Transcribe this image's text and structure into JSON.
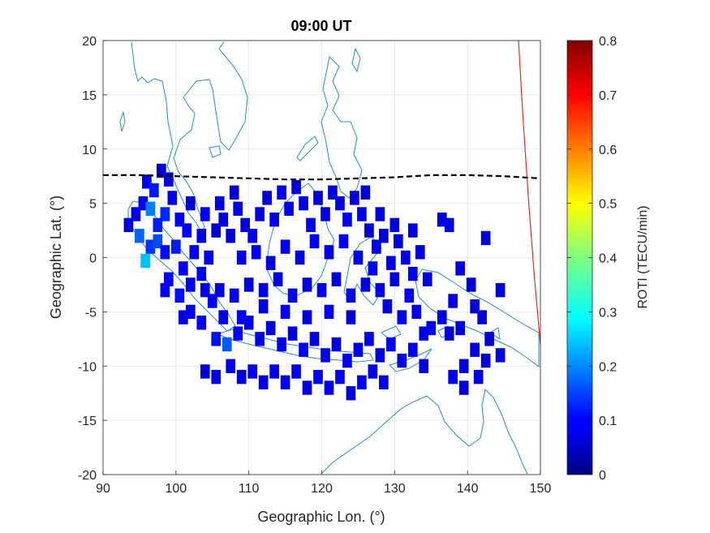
{
  "chart_data": {
    "type": "heatmap",
    "title": "09:00 UT",
    "xlabel": "Geographic Lon. (°)",
    "ylabel": "Geographic Lat. (°)",
    "xlim": [
      90,
      150
    ],
    "ylim": [
      -20,
      20
    ],
    "xticks": [
      "90",
      "100",
      "110",
      "120",
      "130",
      "140",
      "150"
    ],
    "yticks": [
      "20",
      "15",
      "10",
      "5",
      "0",
      "-5",
      "-10",
      "-15",
      "-20"
    ],
    "grid": true,
    "colorbar": {
      "label": "ROTI (TECU/min)",
      "range": [
        0,
        0.8
      ],
      "ticks": [
        "0.8",
        "0.7",
        "0.6",
        "0.5",
        "0.4",
        "0.3",
        "0.2",
        "0.1",
        "0"
      ],
      "colormap": "jet"
    },
    "dashed_line": {
      "color": "#000000",
      "points": [
        [
          90,
          7.6
        ],
        [
          95,
          7.6
        ],
        [
          100,
          7.5
        ],
        [
          105,
          7.4
        ],
        [
          110,
          7.3
        ],
        [
          115,
          7.2
        ],
        [
          120,
          7.2
        ],
        [
          125,
          7.3
        ],
        [
          130,
          7.4
        ],
        [
          135,
          7.6
        ],
        [
          140,
          7.6
        ],
        [
          145,
          7.5
        ],
        [
          150,
          7.3
        ]
      ]
    },
    "red_line": {
      "color": "#e8262a",
      "points": [
        [
          147.0,
          20
        ],
        [
          147.6,
          13
        ],
        [
          148.4,
          5
        ],
        [
          149.2,
          -2
        ],
        [
          150,
          -8
        ]
      ]
    },
    "coastline_color": "#2b8cbe",
    "blocks": [
      [
        96.5,
        1.0,
        0.14
      ],
      [
        97.5,
        1.5,
        0.16
      ],
      [
        98.5,
        0.5,
        0.11
      ],
      [
        96.0,
        7.0,
        0.09
      ],
      [
        97.0,
        6.2,
        0.12
      ],
      [
        98.0,
        8.0,
        0.07
      ],
      [
        99.0,
        7.2,
        0.08
      ],
      [
        95.5,
        5.0,
        0.1
      ],
      [
        94.5,
        4.0,
        0.08
      ],
      [
        93.5,
        3.0,
        0.07
      ],
      [
        95.0,
        2.0,
        0.18
      ],
      [
        95.8,
        -0.3,
        0.25
      ],
      [
        96.5,
        4.5,
        0.2
      ],
      [
        98.5,
        4.0,
        0.13
      ],
      [
        99.5,
        5.5,
        0.09
      ],
      [
        100.5,
        3.5,
        0.1
      ],
      [
        101.5,
        2.5,
        0.09
      ],
      [
        100.0,
        1.0,
        0.12
      ],
      [
        101.0,
        -1.0,
        0.1
      ],
      [
        102.5,
        0.5,
        0.09
      ],
      [
        103.5,
        2.0,
        0.08
      ],
      [
        99.0,
        -2.0,
        0.1
      ],
      [
        100.5,
        -3.5,
        0.11
      ],
      [
        102.0,
        -2.5,
        0.09
      ],
      [
        103.5,
        -1.5,
        0.1
      ],
      [
        104.5,
        0.0,
        0.08
      ],
      [
        105.5,
        2.5,
        0.07
      ],
      [
        106.5,
        3.5,
        0.08
      ],
      [
        107.5,
        2.0,
        0.07
      ],
      [
        108.5,
        4.5,
        0.08
      ],
      [
        109.5,
        3.0,
        0.07
      ],
      [
        110.5,
        2.0,
        0.09
      ],
      [
        111.5,
        4.0,
        0.08
      ],
      [
        112.5,
        5.5,
        0.07
      ],
      [
        113.5,
        3.5,
        0.08
      ],
      [
        114.5,
        6.0,
        0.09
      ],
      [
        115.5,
        4.5,
        0.08
      ],
      [
        116.5,
        6.5,
        0.07
      ],
      [
        117.5,
        5.0,
        0.08
      ],
      [
        118.5,
        3.0,
        0.09
      ],
      [
        119.5,
        5.5,
        0.07
      ],
      [
        120.5,
        4.0,
        0.08
      ],
      [
        121.5,
        6.0,
        0.07
      ],
      [
        122.5,
        5.0,
        0.08
      ],
      [
        123.5,
        3.5,
        0.09
      ],
      [
        124.5,
        5.5,
        0.07
      ],
      [
        125.5,
        4.0,
        0.08
      ],
      [
        126.5,
        2.5,
        0.07
      ],
      [
        127.5,
        1.0,
        0.08
      ],
      [
        128.5,
        2.0,
        0.07
      ],
      [
        129.5,
        -0.5,
        0.08
      ],
      [
        130.5,
        1.5,
        0.07
      ],
      [
        131.5,
        0.0,
        0.08
      ],
      [
        132.5,
        -1.5,
        0.09
      ],
      [
        133.5,
        0.5,
        0.07
      ],
      [
        134.5,
        -2.0,
        0.08
      ],
      [
        136.5,
        3.5,
        0.07
      ],
      [
        137.5,
        3.0,
        0.08
      ],
      [
        142.5,
        1.8,
        0.07
      ],
      [
        139.0,
        -1.0,
        0.08
      ],
      [
        140.5,
        -2.5,
        0.07
      ],
      [
        138.0,
        -4.0,
        0.08
      ],
      [
        141.0,
        -4.5,
        0.07
      ],
      [
        144.5,
        -3.0,
        0.08
      ],
      [
        142.0,
        -5.5,
        0.07
      ],
      [
        136.5,
        -5.5,
        0.08
      ],
      [
        137.5,
        -7.0,
        0.07
      ],
      [
        139.0,
        -6.5,
        0.08
      ],
      [
        143.0,
        -7.5,
        0.07
      ],
      [
        141.0,
        -8.5,
        0.08
      ],
      [
        142.5,
        -9.5,
        0.07
      ],
      [
        144.5,
        -9.0,
        0.08
      ],
      [
        139.5,
        -10.0,
        0.07
      ],
      [
        141.5,
        -11.0,
        0.08
      ],
      [
        139.5,
        -12.0,
        0.07
      ],
      [
        138.0,
        -11.0,
        0.09
      ],
      [
        102.0,
        -5.0,
        0.09
      ],
      [
        103.5,
        -6.0,
        0.1
      ],
      [
        105.0,
        -4.0,
        0.09
      ],
      [
        106.5,
        -5.5,
        0.08
      ],
      [
        105.5,
        -7.5,
        0.11
      ],
      [
        107.0,
        -8.0,
        0.17
      ],
      [
        108.5,
        -7.0,
        0.09
      ],
      [
        110.0,
        -6.0,
        0.08
      ],
      [
        111.5,
        -7.5,
        0.09
      ],
      [
        113.0,
        -6.5,
        0.08
      ],
      [
        114.5,
        -8.0,
        0.09
      ],
      [
        116.0,
        -7.0,
        0.08
      ],
      [
        117.5,
        -8.5,
        0.09
      ],
      [
        119.0,
        -7.5,
        0.08
      ],
      [
        120.5,
        -9.0,
        0.09
      ],
      [
        122.0,
        -8.0,
        0.08
      ],
      [
        123.5,
        -9.5,
        0.09
      ],
      [
        125.0,
        -8.5,
        0.08
      ],
      [
        126.5,
        -7.5,
        0.09
      ],
      [
        128.0,
        -9.0,
        0.08
      ],
      [
        129.5,
        -8.0,
        0.09
      ],
      [
        131.0,
        -9.5,
        0.08
      ],
      [
        132.5,
        -8.5,
        0.09
      ],
      [
        134.0,
        -10.0,
        0.08
      ],
      [
        107.5,
        -10.0,
        0.09
      ],
      [
        109.0,
        -11.0,
        0.08
      ],
      [
        110.5,
        -10.5,
        0.09
      ],
      [
        112.0,
        -11.5,
        0.08
      ],
      [
        113.5,
        -10.5,
        0.09
      ],
      [
        115.0,
        -11.5,
        0.08
      ],
      [
        116.5,
        -10.5,
        0.09
      ],
      [
        118.0,
        -12.0,
        0.08
      ],
      [
        119.5,
        -11.0,
        0.09
      ],
      [
        121.0,
        -12.0,
        0.08
      ],
      [
        122.5,
        -11.0,
        0.09
      ],
      [
        124.0,
        -12.5,
        0.08
      ],
      [
        125.5,
        -11.5,
        0.09
      ],
      [
        127.0,
        -10.5,
        0.08
      ],
      [
        128.5,
        -11.5,
        0.09
      ],
      [
        104.0,
        -10.5,
        0.07
      ],
      [
        105.5,
        -11.0,
        0.08
      ],
      [
        108.0,
        -3.5,
        0.09
      ],
      [
        110.0,
        -2.5,
        0.08
      ],
      [
        112.0,
        -3.0,
        0.09
      ],
      [
        114.0,
        -2.0,
        0.08
      ],
      [
        116.0,
        -3.5,
        0.09
      ],
      [
        118.0,
        -2.5,
        0.08
      ],
      [
        120.0,
        -3.0,
        0.09
      ],
      [
        122.0,
        -2.0,
        0.08
      ],
      [
        124.0,
        -3.5,
        0.09
      ],
      [
        126.0,
        -2.5,
        0.08
      ],
      [
        128.0,
        -3.0,
        0.09
      ],
      [
        130.0,
        -2.0,
        0.08
      ],
      [
        132.0,
        -3.5,
        0.09
      ],
      [
        109.0,
        0.0,
        0.08
      ],
      [
        111.0,
        0.5,
        0.09
      ],
      [
        113.0,
        -0.5,
        0.08
      ],
      [
        115.0,
        1.0,
        0.09
      ],
      [
        117.0,
        0.0,
        0.08
      ],
      [
        119.0,
        1.5,
        0.09
      ],
      [
        121.0,
        0.5,
        0.08
      ],
      [
        123.0,
        1.5,
        0.09
      ],
      [
        125.0,
        0.0,
        0.08
      ],
      [
        127.0,
        -1.0,
        0.09
      ],
      [
        129.0,
        -4.5,
        0.08
      ],
      [
        131.0,
        -5.5,
        0.09
      ],
      [
        133.0,
        -5.0,
        0.08
      ],
      [
        135.0,
        -6.5,
        0.09
      ],
      [
        124.0,
        -5.5,
        0.08
      ],
      [
        121.0,
        -5.0,
        0.09
      ],
      [
        118.0,
        -5.5,
        0.08
      ],
      [
        115.0,
        -5.0,
        0.09
      ],
      [
        112.0,
        -4.5,
        0.08
      ],
      [
        109.0,
        -5.5,
        0.09
      ],
      [
        106.0,
        -3.0,
        0.08
      ],
      [
        104.0,
        -3.0,
        0.09
      ],
      [
        101.0,
        -5.5,
        0.08
      ],
      [
        98.5,
        -3.0,
        0.1
      ],
      [
        97.5,
        3.0,
        0.12
      ],
      [
        108.0,
        6.0,
        0.07
      ],
      [
        106.0,
        5.0,
        0.08
      ],
      [
        104.0,
        4.0,
        0.09
      ],
      [
        102.0,
        5.0,
        0.07
      ],
      [
        126.0,
        6.0,
        0.07
      ],
      [
        128.0,
        4.0,
        0.08
      ],
      [
        130.0,
        3.0,
        0.07
      ],
      [
        132.5,
        2.5,
        0.08
      ],
      [
        134.0,
        -7.0,
        0.08
      ]
    ]
  }
}
